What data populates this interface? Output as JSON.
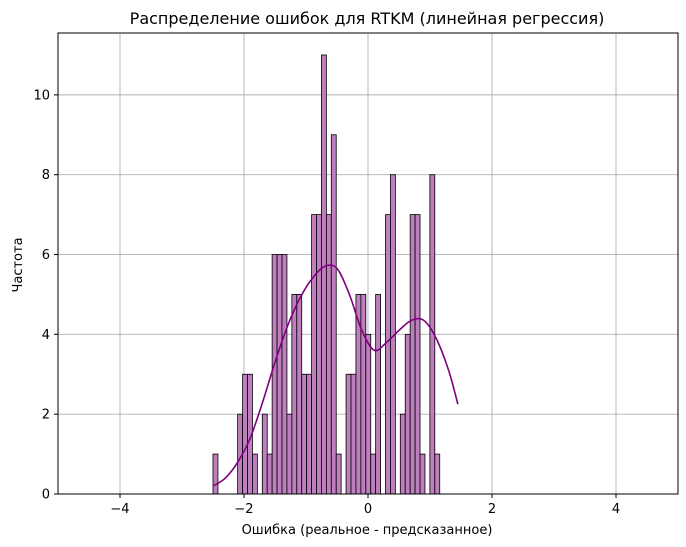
{
  "chart_data": {
    "type": "bar",
    "subtype": "histogram",
    "title": "Распределение ошибок для RTKM (линейная регрессия)",
    "xlabel": "Ошибка (реальное - предсказанное)",
    "ylabel": "Частота",
    "xlim": [
      -5,
      5
    ],
    "ylim": [
      0,
      11.55
    ],
    "x_ticks": [
      -4,
      -2,
      0,
      2,
      4
    ],
    "x_tick_labels": [
      "−4",
      "−2",
      "0",
      "2",
      "4"
    ],
    "y_ticks": [
      0,
      2,
      4,
      6,
      8,
      10
    ],
    "y_tick_labels": [
      "0",
      "2",
      "4",
      "6",
      "8",
      "10"
    ],
    "grid": true,
    "bin_start": -2.5,
    "bin_width": 0.0795,
    "counts": [
      1,
      0,
      0,
      0,
      0,
      2,
      3,
      3,
      1,
      0,
      2,
      1,
      6,
      6,
      6,
      2,
      5,
      5,
      3,
      3,
      7,
      7,
      11,
      7,
      9,
      1,
      0,
      3,
      3,
      5,
      5,
      4,
      1,
      5,
      0,
      7,
      8,
      0,
      2,
      4,
      7,
      7,
      1,
      0,
      8,
      1
    ],
    "kde": {
      "x": [
        -2.5,
        -2.3,
        -2.1,
        -1.9,
        -1.7,
        -1.5,
        -1.3,
        -1.1,
        -0.9,
        -0.7,
        -0.5,
        -0.3,
        -0.1,
        0.1,
        0.3,
        0.5,
        0.7,
        0.9,
        1.1,
        1.3,
        1.45
      ],
      "y": [
        0.2,
        0.4,
        0.8,
        1.4,
        2.3,
        3.3,
        4.2,
        4.9,
        5.4,
        5.7,
        5.65,
        5.0,
        4.1,
        3.6,
        3.8,
        4.1,
        4.35,
        4.35,
        3.9,
        3.1,
        2.25
      ]
    },
    "colors": {
      "bar_fill": "#bf7fbf",
      "bar_edge": "#000000",
      "kde_line": "#800080",
      "grid": "#b0b0b0"
    }
  }
}
